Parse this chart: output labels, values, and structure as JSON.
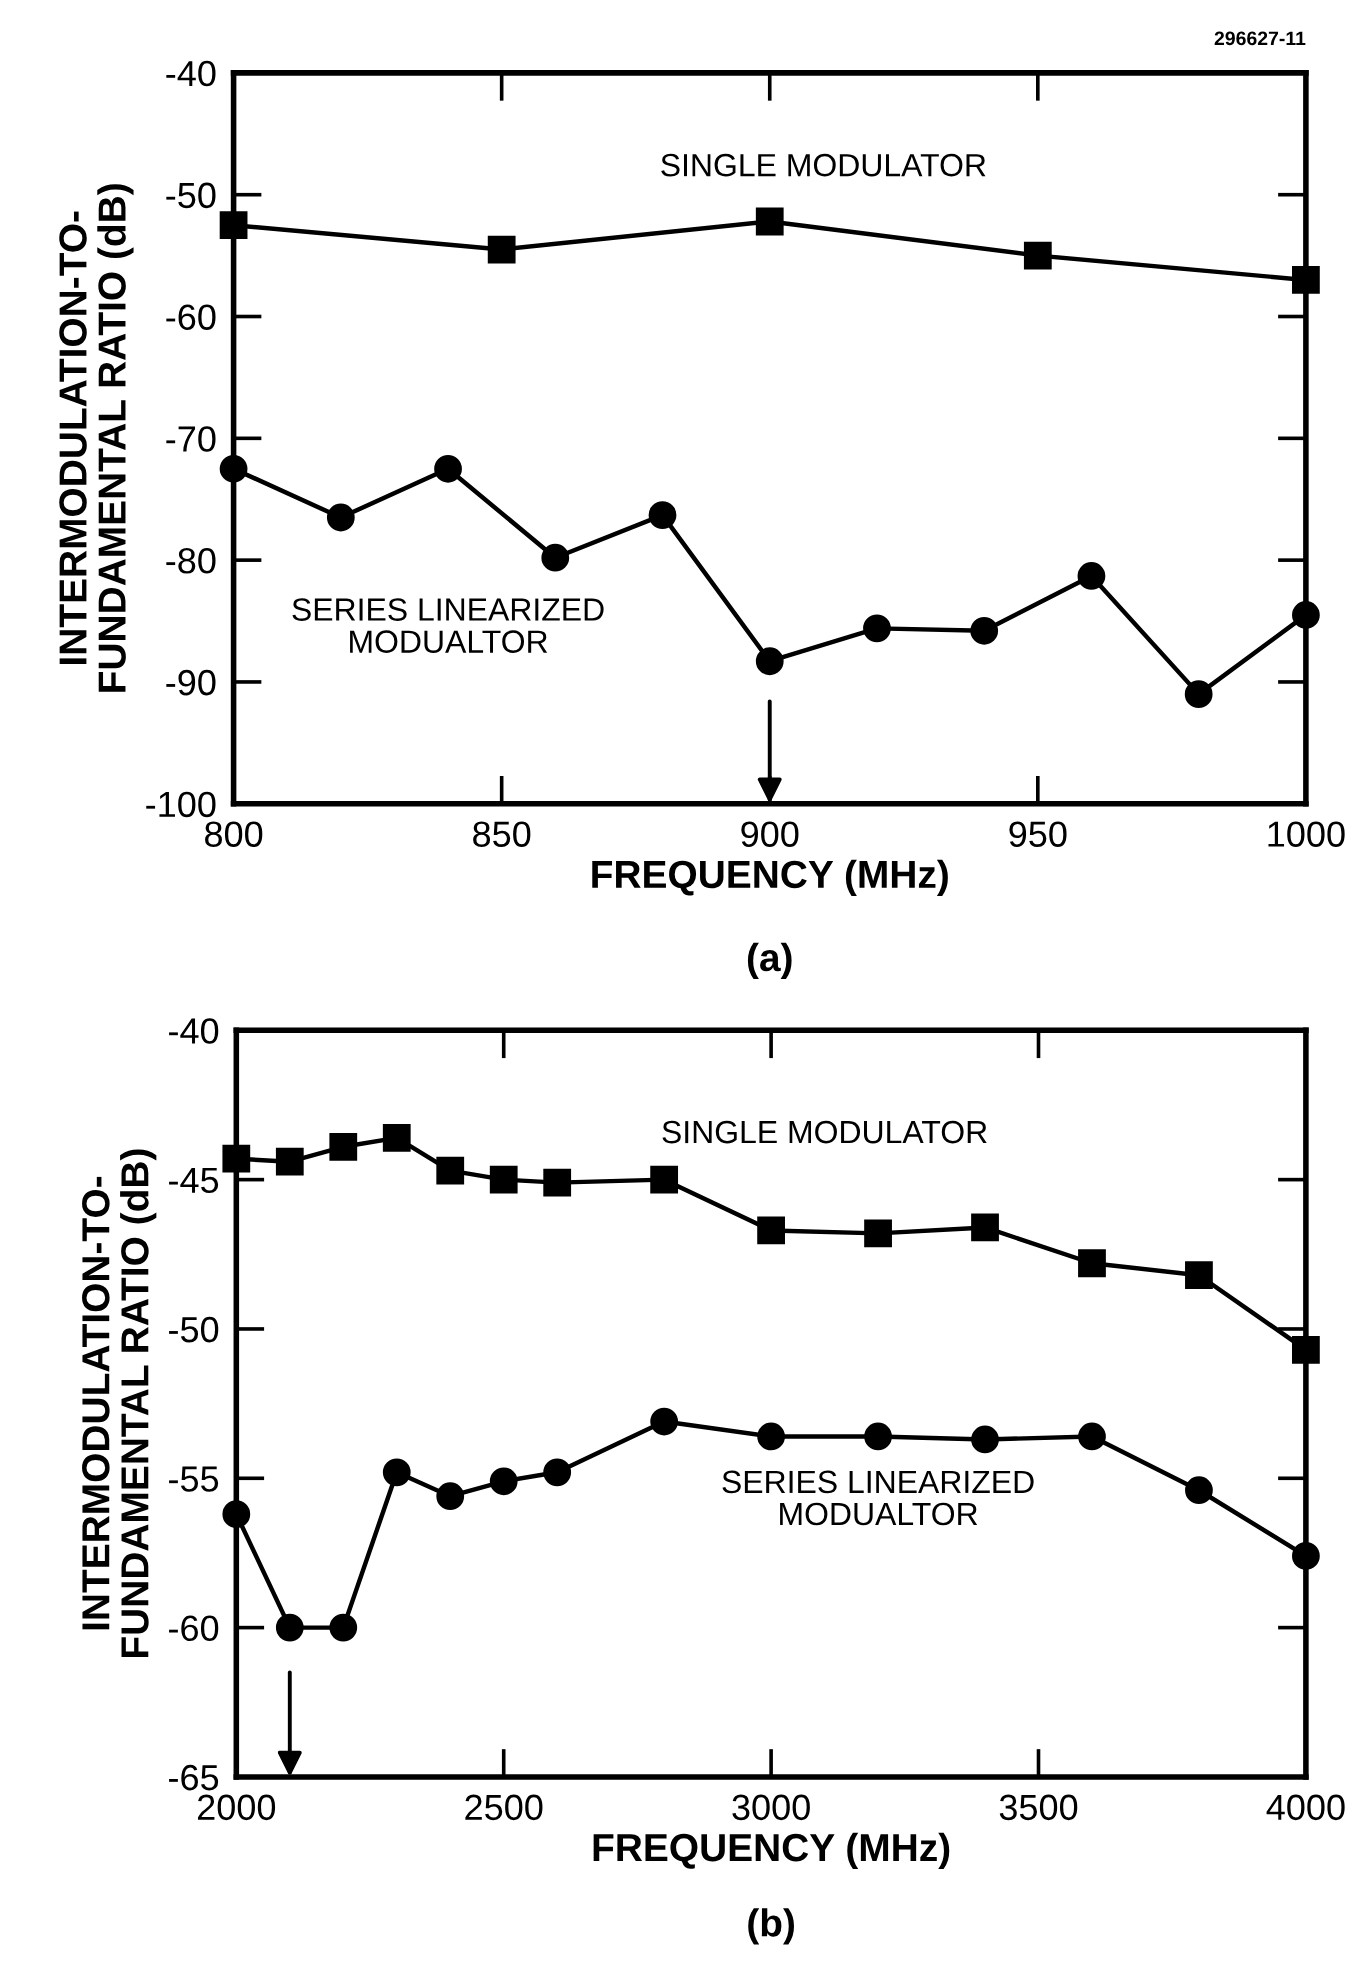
{
  "chart_data": [
    {
      "type": "line",
      "xlabel": "FREQUENCY (MHz)",
      "ylabel": "INTERMODULATION-TO-\nFUNDAMENTAL RATIO (dB)",
      "xlim": [
        800,
        1000
      ],
      "xticks": [
        800,
        850,
        900,
        950,
        1000
      ],
      "ylim": [
        -100,
        -40
      ],
      "yticks": [
        -100,
        -90,
        -80,
        -70,
        -60,
        -50,
        -40
      ],
      "grid": false,
      "line_style": "solid",
      "series": [
        {
          "name": "SINGLE MODULATOR",
          "color": "#000000",
          "marker": "square",
          "x": [
            800,
            850,
            900,
            950,
            1000
          ],
          "values": [
            -52.5,
            -54.5,
            -52.2,
            -55,
            -57
          ]
        },
        {
          "name": "SERIES LINEARIZED\nMODUALTOR",
          "color": "#000000",
          "marker": "circle",
          "x": [
            800,
            820,
            840,
            860,
            880,
            900,
            920,
            940,
            960,
            980,
            1000
          ],
          "values": [
            -72.5,
            -76.5,
            -72.5,
            -79.8,
            -76.3,
            -88.3,
            -85.6,
            -85.8,
            -81.3,
            -91,
            -84.5
          ]
        }
      ],
      "annotations": [
        "296627-11",
        "(a)"
      ]
    },
    {
      "type": "line",
      "xlabel": "FREQUENCY (MHz)",
      "ylabel": "INTERMODULATION-TO-\nFUNDAMENTAL RATIO (dB)",
      "xlim": [
        2000,
        4000
      ],
      "xticks": [
        2000,
        2500,
        3000,
        3500,
        4000
      ],
      "ylim": [
        -65,
        -40
      ],
      "yticks": [
        -65,
        -60,
        -55,
        -50,
        -45,
        -40
      ],
      "grid": false,
      "line_style": "solid",
      "series": [
        {
          "name": "SINGLE MODULATOR",
          "color": "#000000",
          "marker": "square",
          "x": [
            2000,
            2100,
            2200,
            2300,
            2400,
            2500,
            2600,
            2800,
            3000,
            3200,
            3400,
            3600,
            3800,
            4000
          ],
          "values": [
            -44.3,
            -44.4,
            -43.9,
            -43.6,
            -44.7,
            -45.0,
            -45.1,
            -45.0,
            -46.7,
            -46.8,
            -46.6,
            -47.8,
            -48.2,
            -50.7
          ]
        },
        {
          "name": "SERIES LINEARIZED\nMODUALTOR",
          "color": "#000000",
          "marker": "circle",
          "x": [
            2000,
            2100,
            2200,
            2300,
            2400,
            2500,
            2600,
            2800,
            3000,
            3200,
            3400,
            3600,
            3800,
            4000
          ],
          "values": [
            -56.2,
            -60,
            -60,
            -54.8,
            -55.6,
            -55.1,
            -54.8,
            -53.1,
            -53.6,
            -53.6,
            -53.7,
            -53.6,
            -55.4,
            -57.6
          ]
        }
      ],
      "annotations": [
        "(b)"
      ]
    }
  ]
}
